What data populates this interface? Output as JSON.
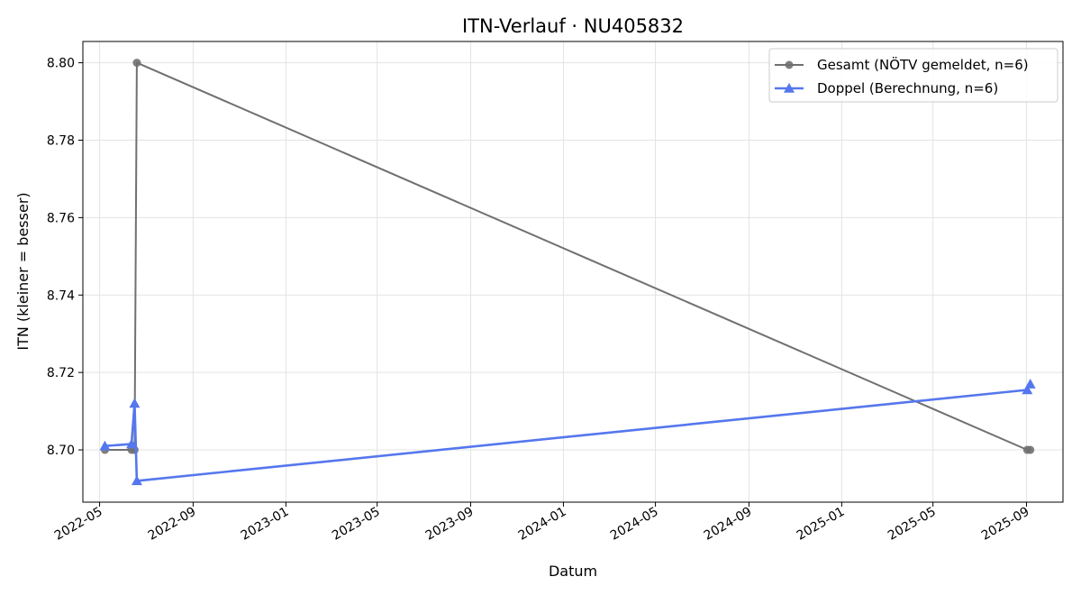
{
  "chart_data": {
    "type": "line",
    "title": "ITN-Verlauf · NU405832",
    "xlabel": "Datum",
    "ylabel": "ITN  (kleiner = besser)",
    "x_axis": "date",
    "xlim": [
      "2022-04-09",
      "2025-10-19"
    ],
    "ylim": [
      8.6865,
      8.8055
    ],
    "x_ticks": [
      "2022-05-01",
      "2022-09-01",
      "2023-01-01",
      "2023-05-01",
      "2023-09-01",
      "2024-01-01",
      "2024-05-01",
      "2024-09-01",
      "2025-01-01",
      "2025-05-01",
      "2025-09-01"
    ],
    "x_tick_labels": [
      "2022-05",
      "2022-09",
      "2023-01",
      "2023-05",
      "2023-09",
      "2024-01",
      "2024-05",
      "2024-09",
      "2025-01",
      "2025-05",
      "2025-09"
    ],
    "y_ticks": [
      8.7,
      8.72,
      8.74,
      8.76,
      8.78,
      8.8
    ],
    "y_tick_labels": [
      "8.70",
      "8.72",
      "8.74",
      "8.76",
      "8.78",
      "8.80"
    ],
    "grid": true,
    "legend_position": "top-right",
    "series": [
      {
        "name": "Gesamt (NÖTV gemeldet, n=6)",
        "color": "#707070",
        "marker": "circle",
        "points": [
          {
            "x": "2022-05-08",
            "y": 8.7
          },
          {
            "x": "2022-06-12",
            "y": 8.7
          },
          {
            "x": "2022-06-16",
            "y": 8.7
          },
          {
            "x": "2022-06-19",
            "y": 8.8
          },
          {
            "x": "2025-09-02",
            "y": 8.7
          },
          {
            "x": "2025-09-06",
            "y": 8.7
          }
        ]
      },
      {
        "name": "Doppel (Berechnung, n=6)",
        "color": "#5577ee",
        "marker": "triangle",
        "points": [
          {
            "x": "2022-05-08",
            "y": 8.701
          },
          {
            "x": "2022-06-12",
            "y": 8.7015
          },
          {
            "x": "2022-06-16",
            "y": 8.712
          },
          {
            "x": "2022-06-19",
            "y": 8.692
          },
          {
            "x": "2025-09-02",
            "y": 8.7155
          },
          {
            "x": "2025-09-06",
            "y": 8.717
          }
        ]
      }
    ]
  }
}
